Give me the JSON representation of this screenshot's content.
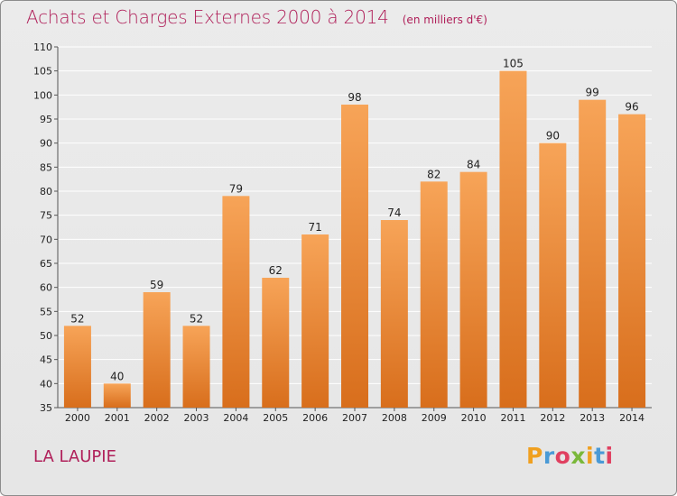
{
  "header": {
    "title": "Achats et Charges Externes 2000 à 2014",
    "unit": "(en milliers d'€)"
  },
  "footer": {
    "commune": "LA LAUPIE",
    "logo": {
      "text": "Proxiti",
      "letter_colors": [
        "#f0a020",
        "#4a9ad6",
        "#e04060",
        "#7ab83a",
        "#f0a020",
        "#4a9ad6",
        "#e04060"
      ]
    }
  },
  "colors": {
    "bar_light": "#f7a458",
    "bar_dark": "#d86e1c",
    "title": "#b0205a",
    "grid": "#ffffff",
    "frame_bg": "#e8e8e8"
  },
  "chart_data": {
    "type": "bar",
    "title": "Achats et Charges Externes 2000 à 2014",
    "subtitle": "(en milliers d'€)",
    "xlabel": "",
    "ylabel": "",
    "categories": [
      "2000",
      "2001",
      "2002",
      "2003",
      "2004",
      "2005",
      "2006",
      "2007",
      "2008",
      "2009",
      "2010",
      "2011",
      "2012",
      "2013",
      "2014"
    ],
    "values": [
      52,
      40,
      59,
      52,
      79,
      62,
      71,
      98,
      74,
      82,
      84,
      105,
      90,
      99,
      96
    ],
    "ylim": [
      35,
      110
    ],
    "yticks": [
      35,
      40,
      45,
      50,
      55,
      60,
      65,
      70,
      75,
      80,
      85,
      90,
      95,
      100,
      105,
      110
    ],
    "grid": true,
    "data_labels": true
  }
}
